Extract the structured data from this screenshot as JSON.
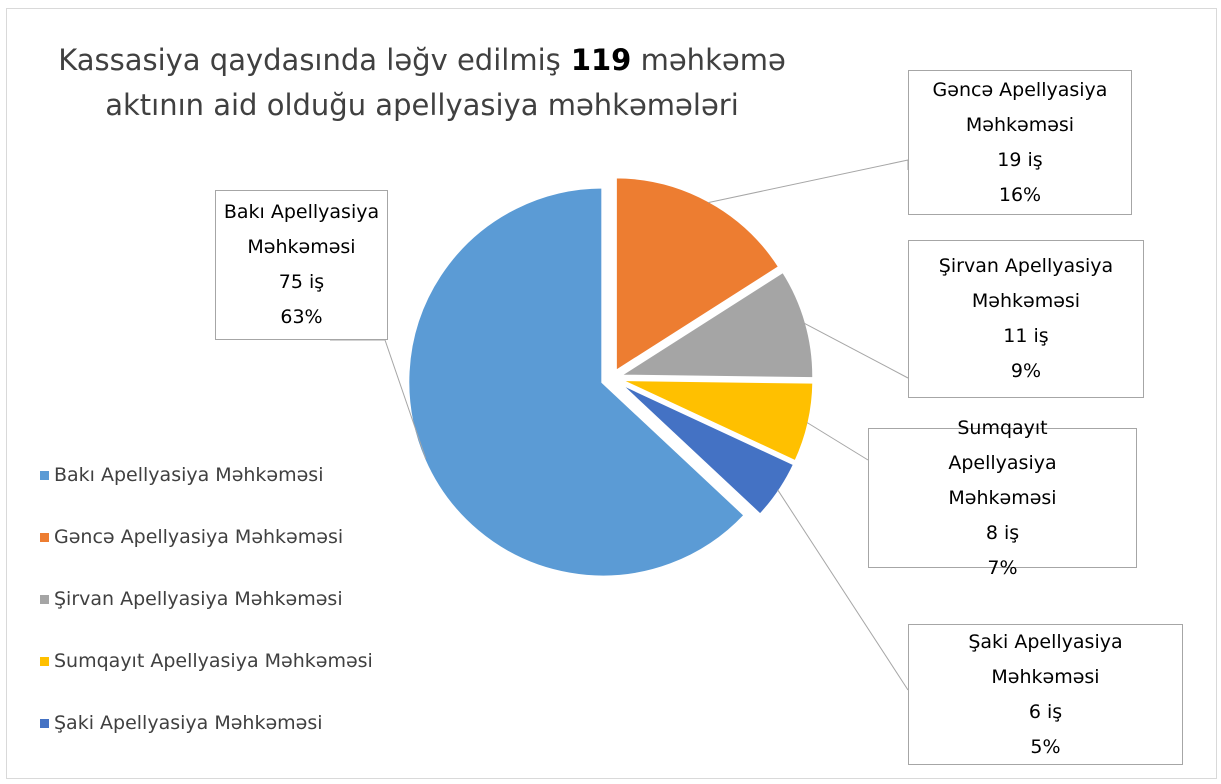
{
  "chart_data": {
    "type": "pie",
    "title": "Kassasiya qaydasında ləğv edilmiş 119 məhkəmə aktının aid olduğu apellyasiya məhkəmələri",
    "categories": [
      "Bakı Apellyasiya Məhkəməsi",
      "Gəncə Apellyasiya Məhkəməsi",
      "Şirvan Apellyasiya Məhkəməsi",
      "Sumqayıt Apellyasiya Məhkəməsi",
      "Şaki Apellyasiya Məhkəməsi"
    ],
    "values": [
      75,
      19,
      11,
      8,
      6
    ],
    "value_labels": [
      "75 iş",
      "19 iş",
      "11 iş",
      "8 iş",
      "6 iş"
    ],
    "percent_labels": [
      "63%",
      "16%",
      "9%",
      "7%",
      "5%"
    ],
    "colors": [
      "#5b9bd5",
      "#ed7d31",
      "#a5a5a5",
      "#ffc000",
      "#4472c4"
    ],
    "legend": "left"
  }
}
